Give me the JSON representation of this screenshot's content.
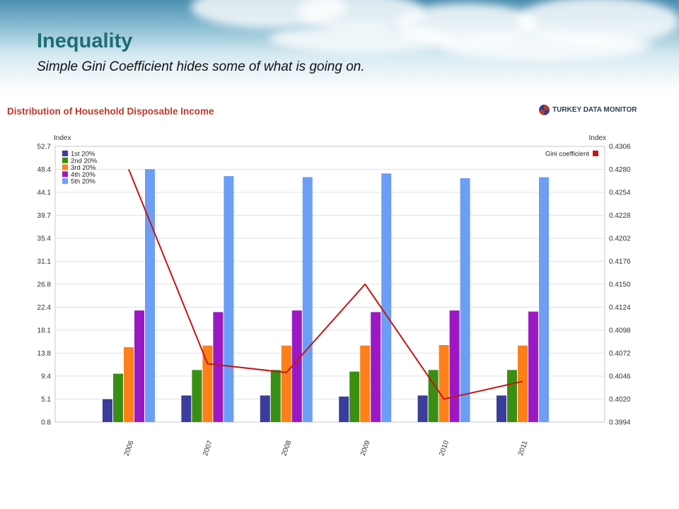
{
  "header": {
    "title": "Inequality",
    "subtitle": "Simple Gini Coefficient hides some of what is going on."
  },
  "chart_title": "Distribution of Household Disposable Income",
  "brand": {
    "name": "TURKEY DATA MONITOR"
  },
  "chart_data": {
    "type": "bar",
    "title": "Distribution of Household Disposable Income",
    "categories": [
      "2006",
      "2007",
      "2008",
      "2009",
      "2010",
      "2011"
    ],
    "ylabel_left": "Index",
    "ylabel_right": "Index",
    "left_axis": {
      "ticks": [
        "0.8",
        "5.1",
        "9.4",
        "13.8",
        "18.1",
        "22.4",
        "26.8",
        "31.1",
        "35.4",
        "39.7",
        "44.1",
        "48.4",
        "52.7"
      ],
      "range": [
        0.8,
        52.7
      ]
    },
    "right_axis": {
      "ticks": [
        "0.3994",
        "0.4020",
        "0.4046",
        "0.4072",
        "0.4098",
        "0.4124",
        "0.4150",
        "0.4176",
        "0.4202",
        "0.4228",
        "0.4254",
        "0.4280",
        "0.4306"
      ],
      "range": [
        0.3994,
        0.4306
      ]
    },
    "series": [
      {
        "name": "1st 20%",
        "color": "#3a3d9a",
        "axis": "left",
        "values": [
          5.1,
          5.8,
          5.8,
          5.6,
          5.8,
          5.8
        ]
      },
      {
        "name": "2nd 20%",
        "color": "#3a8f12",
        "axis": "left",
        "values": [
          9.9,
          10.6,
          10.6,
          10.3,
          10.6,
          10.6
        ]
      },
      {
        "name": "3rd 20%",
        "color": "#ff8019",
        "axis": "left",
        "values": [
          14.9,
          15.2,
          15.2,
          15.2,
          15.3,
          15.2
        ]
      },
      {
        "name": "4th 20%",
        "color": "#9b19c4",
        "axis": "left",
        "values": [
          21.8,
          21.5,
          21.8,
          21.5,
          21.8,
          21.6
        ]
      },
      {
        "name": "5th 20%",
        "color": "#6c9ef5",
        "axis": "left",
        "values": [
          48.4,
          47.1,
          46.9,
          47.6,
          46.7,
          46.9
        ]
      }
    ],
    "line_series": [
      {
        "name": "Gini coefficient",
        "color": "#c41616",
        "axis": "right",
        "values": [
          0.428,
          0.406,
          0.405,
          0.415,
          0.402,
          0.404
        ]
      }
    ],
    "legend_position": "top-left",
    "line_legend_position": "top-right",
    "grid": true
  }
}
